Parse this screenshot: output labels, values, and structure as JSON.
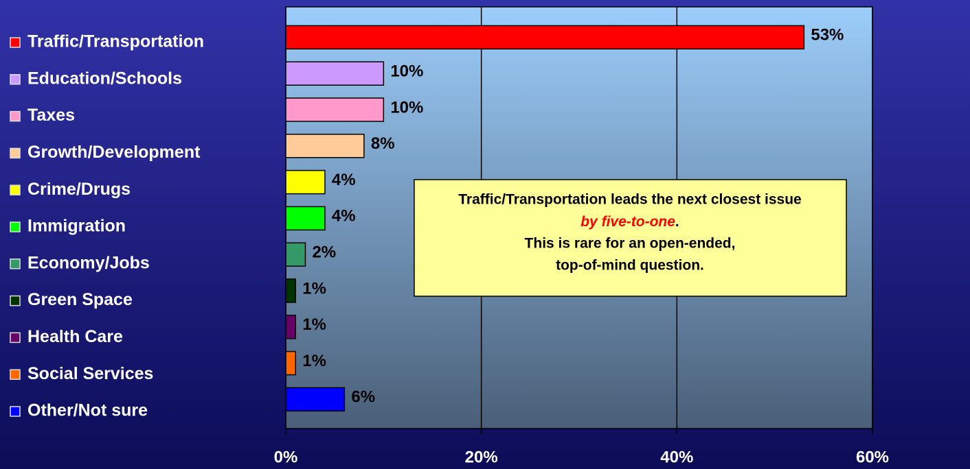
{
  "chart_data": {
    "type": "barh",
    "categories": [
      "Traffic/Transportation",
      "Education/Schools",
      "Taxes",
      "Growth/Development",
      "Crime/Drugs",
      "Immigration",
      "Economy/Jobs",
      "Green Space",
      "Health Care",
      "Social Services",
      "Other/Not sure"
    ],
    "values": [
      53,
      10,
      10,
      8,
      4,
      4,
      2,
      1,
      1,
      1,
      6
    ],
    "value_labels": [
      "53%",
      "10%",
      "10%",
      "8%",
      "4%",
      "4%",
      "2%",
      "1%",
      "1%",
      "1%",
      "6%"
    ],
    "colors": [
      "#ff0000",
      "#cc99ff",
      "#ff99cc",
      "#ffcc99",
      "#ffff00",
      "#00ff00",
      "#339966",
      "#003300",
      "#660066",
      "#ff6600",
      "#0000ff"
    ],
    "xlim": [
      0,
      60
    ],
    "xticks": [
      {
        "value": 0,
        "label": "0%"
      },
      {
        "value": 20,
        "label": "20%"
      },
      {
        "value": 40,
        "label": "40%"
      },
      {
        "value": 60,
        "label": "60%"
      }
    ],
    "grid": true,
    "legend": "left",
    "annotation": {
      "line1": "Traffic/Transportation leads the next closest issue",
      "emphasis": "by five-to-one",
      "emphasis_end": ".",
      "line3": "This is rare for an open-ended,",
      "line4": "top-of-mind question."
    }
  }
}
